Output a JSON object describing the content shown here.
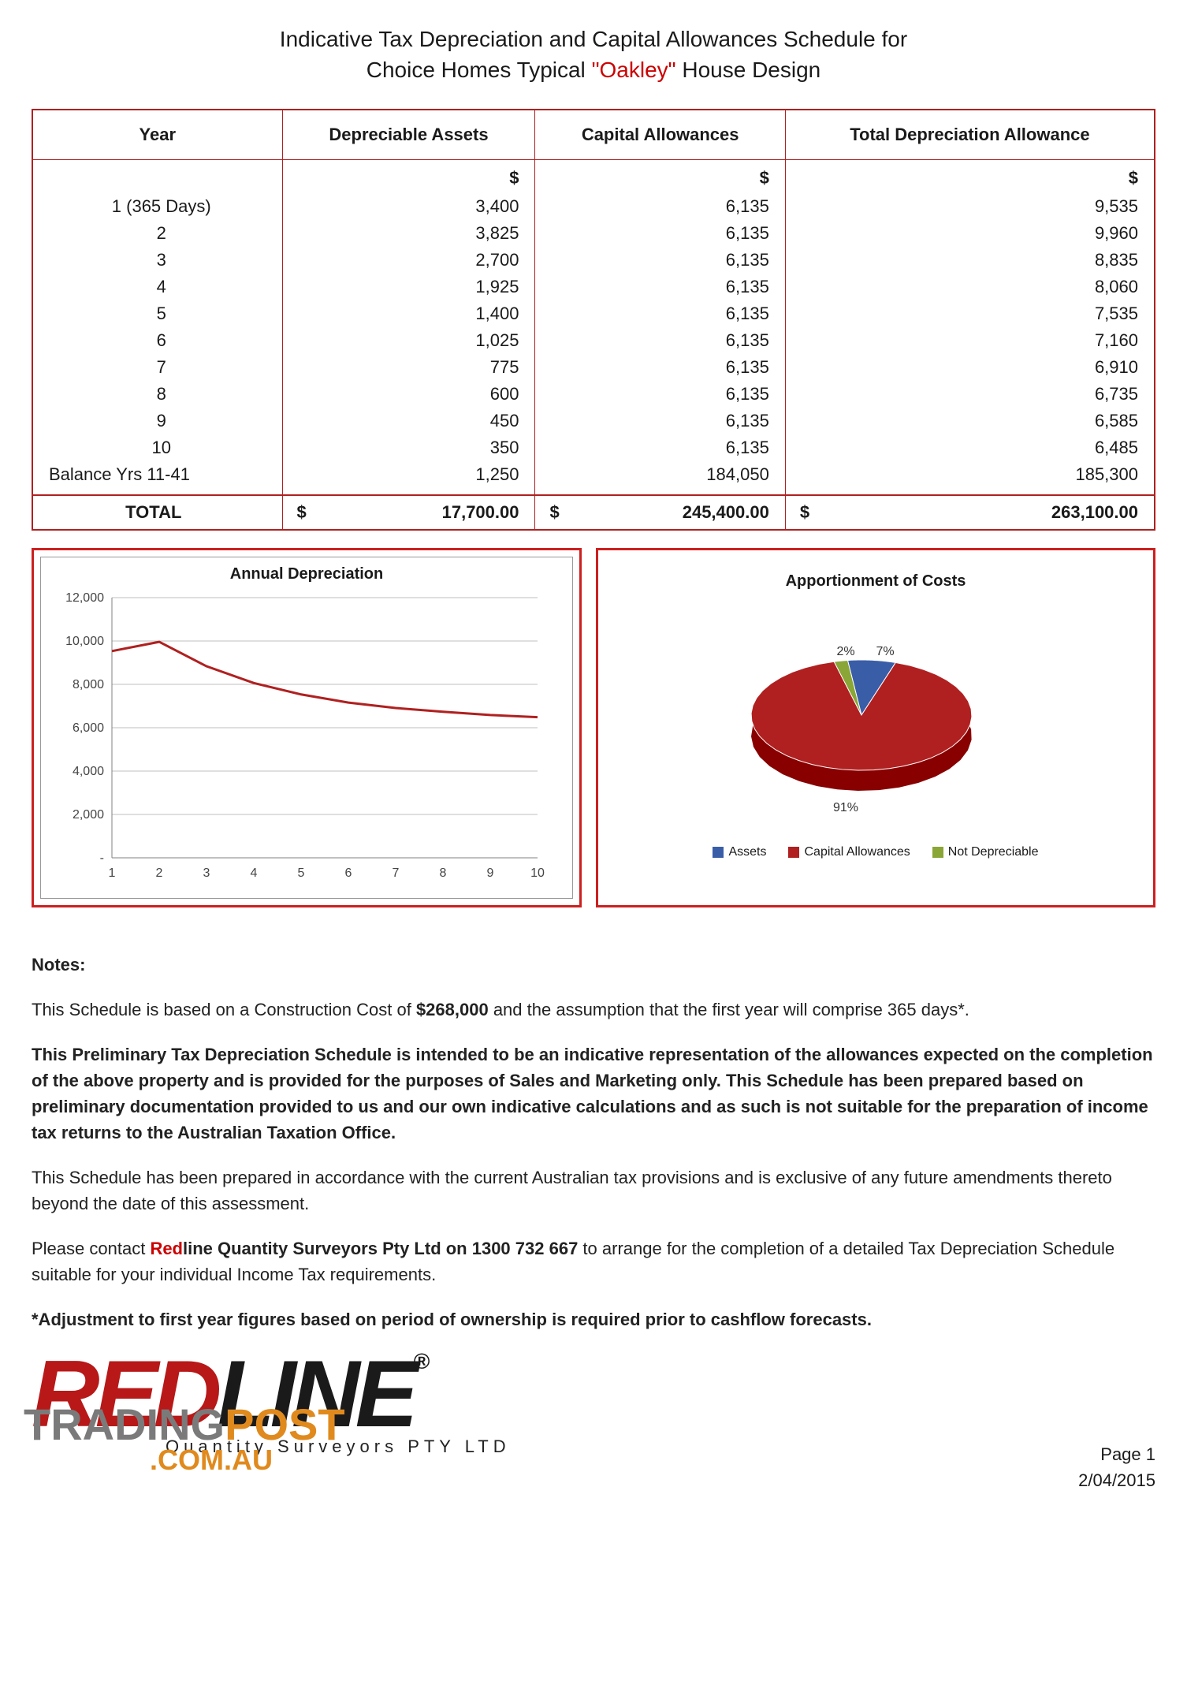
{
  "title": {
    "line1": "Indicative Tax Depreciation and Capital Allowances Schedule for",
    "line2a": "Choice Homes Typical ",
    "line2b": "\"Oakley\"",
    "line2c": " House Design"
  },
  "table": {
    "headers": [
      "Year",
      "Depreciable Assets",
      "Capital Allowances",
      "Total Depreciation Allowance"
    ],
    "currency": "$",
    "rows": [
      {
        "year": "1 (365 Days)",
        "da": "3,400",
        "ca": "6,135",
        "tot": "9,535"
      },
      {
        "year": "2",
        "da": "3,825",
        "ca": "6,135",
        "tot": "9,960"
      },
      {
        "year": "3",
        "da": "2,700",
        "ca": "6,135",
        "tot": "8,835"
      },
      {
        "year": "4",
        "da": "1,925",
        "ca": "6,135",
        "tot": "8,060"
      },
      {
        "year": "5",
        "da": "1,400",
        "ca": "6,135",
        "tot": "7,535"
      },
      {
        "year": "6",
        "da": "1,025",
        "ca": "6,135",
        "tot": "7,160"
      },
      {
        "year": "7",
        "da": "775",
        "ca": "6,135",
        "tot": "6,910"
      },
      {
        "year": "8",
        "da": "600",
        "ca": "6,135",
        "tot": "6,735"
      },
      {
        "year": "9",
        "da": "450",
        "ca": "6,135",
        "tot": "6,585"
      },
      {
        "year": "10",
        "da": "350",
        "ca": "6,135",
        "tot": "6,485"
      },
      {
        "year": "Balance Yrs 11-41",
        "da": "1,250",
        "ca": "184,050",
        "tot": "185,300"
      }
    ],
    "total": {
      "label": "TOTAL",
      "da": "17,700.00",
      "ca": "245,400.00",
      "tot": "263,100.00"
    }
  },
  "line_chart": {
    "type": "line",
    "title": "Annual Depreciation",
    "x": [
      1,
      2,
      3,
      4,
      5,
      6,
      7,
      8,
      9,
      10
    ],
    "y": [
      9535,
      9960,
      8835,
      8060,
      7535,
      7160,
      6910,
      6735,
      6585,
      6485
    ],
    "ylim": [
      0,
      12000
    ],
    "ytick_step": 2000,
    "ytick_labels": [
      "-",
      "2,000",
      "4,000",
      "6,000",
      "8,000",
      "10,000",
      "12,000"
    ],
    "line_color": "#b02020",
    "line_width": 3,
    "grid_color": "#bfbfbf",
    "background_color": "#ffffff",
    "axis_color": "#808080",
    "tick_fontsize": 16
  },
  "pie_chart": {
    "type": "pie",
    "title": "Apportionment of Costs",
    "slices": [
      {
        "label": "Assets",
        "value": 7,
        "color": "#3a5da8",
        "display": "7%"
      },
      {
        "label": "Capital Allowances",
        "value": 91,
        "color": "#b02020",
        "display": "91%"
      },
      {
        "label": "Not Depreciable",
        "value": 2,
        "color": "#8aa636",
        "display": "2%"
      }
    ],
    "legend": [
      "Assets",
      "Capital Allowances",
      "Not Depreciable"
    ],
    "legend_colors": [
      "#3a5da8",
      "#b02020",
      "#8aa636"
    ],
    "label_fontsize": 16,
    "title_fontsize": 20
  },
  "notes": {
    "heading": "Notes:",
    "p1a": "This Schedule is based on a Construction Cost of ",
    "p1b": "$268,000",
    "p1c": " and the assumption that the first year will comprise 365 days*.",
    "p2": "This Preliminary Tax Depreciation Schedule is intended to be an indicative representation of the allowances expected on the completion of the above property and is provided for the purposes of Sales and Marketing only.  This Schedule has been prepared based on preliminary documentation provided to us and our own indicative calculations and as such is not suitable for the preparation of income tax returns to the Australian Taxation Office.",
    "p3": "This Schedule has been prepared in accordance with the current Australian tax provisions and is exclusive of any future amendments thereto beyond the date of this assessment.",
    "p4a": "Please contact ",
    "p4b": "Red",
    "p4c": "line Quantity Surveyors Pty Ltd on 1300 732 667",
    "p4d": " to arrange for the completion of a detailed Tax Depreciation Schedule suitable for your individual Income Tax requirements.",
    "p5": "*Adjustment to first year figures based on period of ownership is required prior to cashflow forecasts."
  },
  "footer": {
    "logo_red": "RED",
    "logo_line": "LINE",
    "logo_r": "®",
    "logo_sub": "Quantity Surveyors PTY LTD",
    "tp1": "TRADING",
    "tp2": "POST",
    "tp3": ".COM.AU",
    "page": "Page 1",
    "date": "2/04/2015"
  }
}
